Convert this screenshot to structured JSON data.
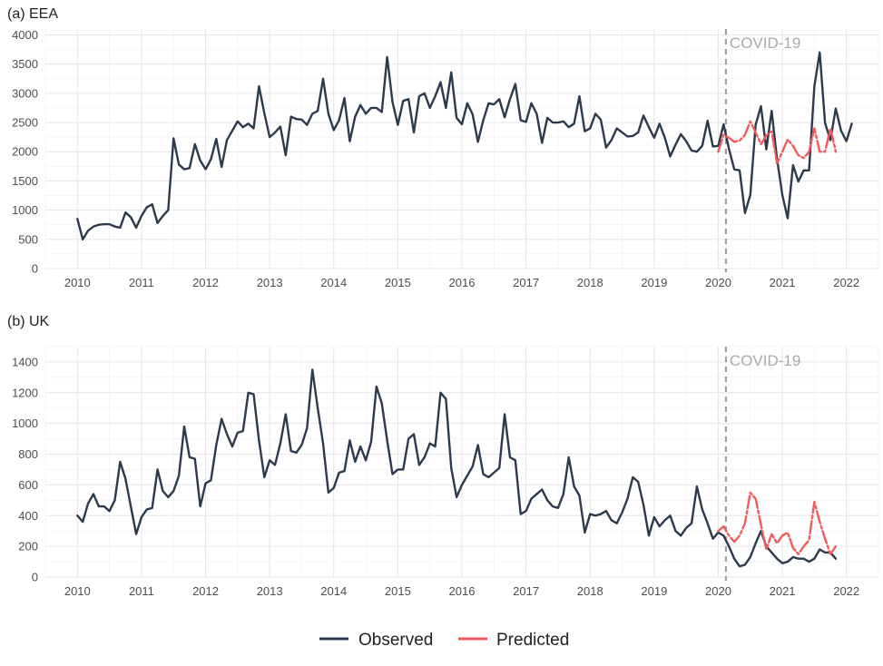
{
  "chart_data": [
    {
      "type": "line",
      "title": "(a) EEA",
      "xlabel": "",
      "ylabel": "",
      "xlim": [
        2009.5,
        2022.5
      ],
      "ylim": [
        0,
        4100
      ],
      "xticks": [
        2010,
        2011,
        2012,
        2013,
        2014,
        2015,
        2016,
        2017,
        2018,
        2019,
        2020,
        2021,
        2022
      ],
      "yticks": [
        0,
        500,
        1000,
        1500,
        2000,
        2500,
        3000,
        3500,
        4000
      ],
      "annotation": {
        "text": "COVID-19",
        "x": 2020.12
      },
      "grid": true,
      "series": [
        {
          "name": "Observed",
          "color": "#2d3a4c",
          "x_start": 2010.0,
          "x_step": 0.0833333,
          "values": [
            850,
            500,
            650,
            720,
            750,
            760,
            760,
            720,
            700,
            960,
            880,
            700,
            900,
            1050,
            1100,
            780,
            900,
            1000,
            2230,
            1780,
            1700,
            1720,
            2130,
            1850,
            1700,
            1870,
            2220,
            1740,
            2200,
            2360,
            2520,
            2420,
            2480,
            2400,
            3120,
            2660,
            2250,
            2330,
            2430,
            1940,
            2600,
            2560,
            2550,
            2460,
            2650,
            2700,
            3250,
            2650,
            2370,
            2540,
            2920,
            2180,
            2600,
            2800,
            2650,
            2750,
            2750,
            2680,
            3620,
            2850,
            2460,
            2870,
            2900,
            2330,
            2950,
            3000,
            2750,
            2950,
            3190,
            2750,
            3360,
            2580,
            2470,
            2830,
            2640,
            2170,
            2540,
            2830,
            2810,
            2900,
            2590,
            2900,
            3160,
            2540,
            2510,
            2830,
            2650,
            2150,
            2580,
            2500,
            2500,
            2520,
            2420,
            2480,
            2950,
            2350,
            2400,
            2650,
            2550,
            2070,
            2200,
            2400,
            2330,
            2260,
            2270,
            2330,
            2620,
            2420,
            2240,
            2480,
            2240,
            1920,
            2120,
            2300,
            2180,
            2020,
            2000,
            2100,
            2530,
            2090,
            2100,
            2470,
            2050,
            1700,
            1680,
            950,
            1260,
            2460,
            2780,
            2040,
            2700,
            1880,
            1260,
            860,
            1770,
            1490,
            1680,
            1680,
            3120,
            3700,
            2490,
            2200,
            2740,
            2360,
            2180,
            2480
          ]
        },
        {
          "name": "Predicted",
          "color": "#f25c5c",
          "x_start": 2020.0,
          "x_step": 0.0833333,
          "values": [
            2000,
            2290,
            2240,
            2170,
            2190,
            2290,
            2520,
            2330,
            2130,
            2280,
            2350,
            1800,
            2000,
            2210,
            2100,
            1940,
            1890,
            2000,
            2400,
            2000,
            2000,
            2400,
            2000
          ]
        }
      ]
    },
    {
      "type": "line",
      "title": "(b) UK",
      "xlabel": "",
      "ylabel": "",
      "xlim": [
        2009.5,
        2022.5
      ],
      "ylim": [
        0,
        1500
      ],
      "xticks": [
        2010,
        2011,
        2012,
        2013,
        2014,
        2015,
        2016,
        2017,
        2018,
        2019,
        2020,
        2021,
        2022
      ],
      "yticks": [
        0,
        200,
        400,
        600,
        800,
        1000,
        1200,
        1400
      ],
      "annotation": {
        "text": "COVID-19",
        "x": 2020.12
      },
      "grid": true,
      "series": [
        {
          "name": "Observed",
          "color": "#2d3a4c",
          "x_start": 2010.0,
          "x_step": 0.0833333,
          "values": [
            400,
            360,
            480,
            540,
            460,
            460,
            430,
            500,
            750,
            640,
            460,
            280,
            390,
            440,
            450,
            700,
            560,
            520,
            560,
            660,
            980,
            780,
            770,
            460,
            610,
            630,
            860,
            1030,
            930,
            850,
            940,
            950,
            1200,
            1190,
            890,
            650,
            760,
            730,
            870,
            1060,
            820,
            810,
            860,
            970,
            1350,
            1100,
            870,
            550,
            580,
            680,
            690,
            890,
            750,
            850,
            760,
            880,
            1240,
            1130,
            890,
            670,
            700,
            700,
            900,
            930,
            730,
            780,
            870,
            850,
            1200,
            1160,
            710,
            520,
            600,
            660,
            720,
            860,
            670,
            650,
            680,
            710,
            1060,
            780,
            760,
            410,
            430,
            510,
            540,
            570,
            500,
            460,
            450,
            540,
            780,
            590,
            530,
            290,
            410,
            400,
            410,
            430,
            370,
            350,
            420,
            510,
            650,
            620,
            470,
            270,
            390,
            330,
            370,
            400,
            300,
            270,
            320,
            350,
            590,
            440,
            350,
            250,
            290,
            270,
            200,
            120,
            70,
            80,
            130,
            220,
            300,
            200,
            160,
            120,
            90,
            100,
            130,
            120,
            120,
            100,
            120,
            180,
            160,
            160,
            120
          ]
        },
        {
          "name": "Predicted",
          "color": "#f25c5c",
          "x_start": 2020.0,
          "x_step": 0.0833333,
          "values": [
            300,
            330,
            270,
            230,
            270,
            350,
            550,
            510,
            340,
            180,
            280,
            220,
            270,
            290,
            190,
            150,
            200,
            240,
            490,
            360,
            250,
            150,
            200
          ]
        }
      ]
    }
  ],
  "legend": {
    "placement": "bottom",
    "items": [
      {
        "label": "Observed",
        "color": "#2d3a4c"
      },
      {
        "label": "Predicted",
        "color": "#f25c5c"
      }
    ]
  }
}
